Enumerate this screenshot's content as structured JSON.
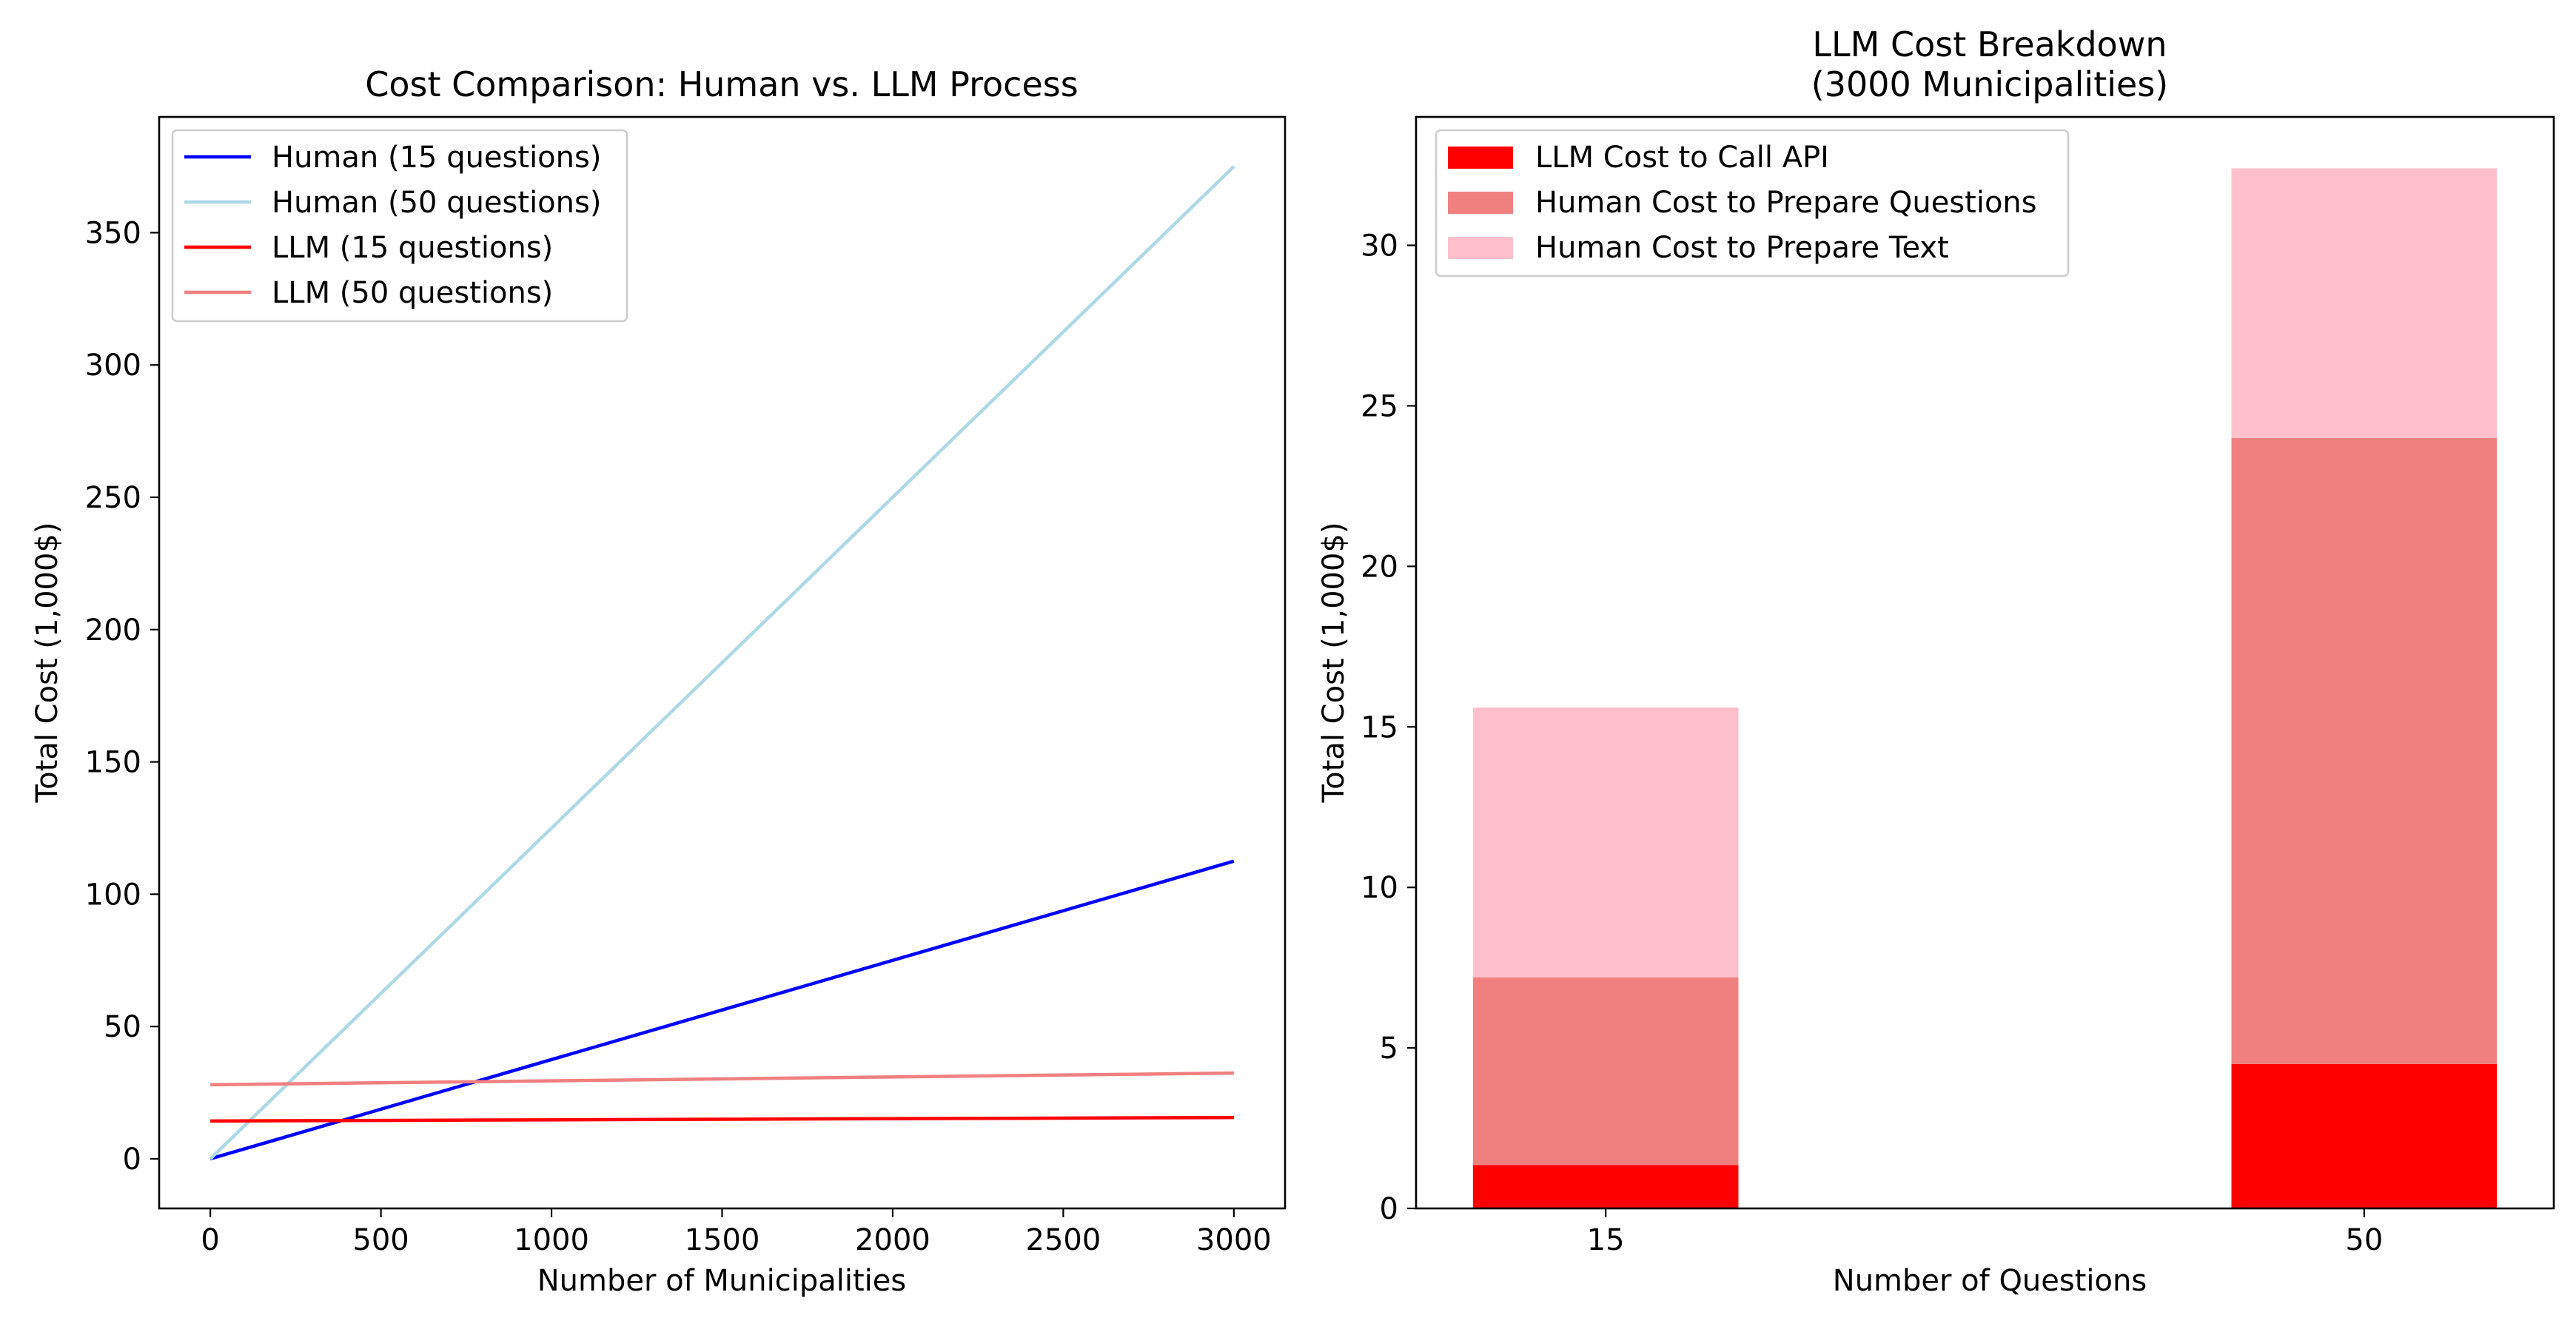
{
  "chart_data": [
    {
      "type": "line",
      "title": "Cost Comparison: Human vs. LLM Process",
      "xlabel": "Number of Municipalities",
      "ylabel": "Total Cost (1,000$)",
      "xlim": [
        -150,
        3150
      ],
      "ylim": [
        -18.75,
        393.75
      ],
      "xticks": [
        0,
        500,
        1000,
        1500,
        2000,
        2500,
        3000
      ],
      "yticks": [
        0,
        50,
        100,
        150,
        200,
        250,
        300,
        350
      ],
      "grid": false,
      "legend_position": "top-left",
      "series": [
        {
          "name": "Human (15 questions)",
          "color": "#0000ff",
          "x": [
            0,
            3000
          ],
          "y": [
            0,
            112.5
          ]
        },
        {
          "name": "Human (50 questions)",
          "color": "#add8e6",
          "x": [
            0,
            3000
          ],
          "y": [
            0,
            375
          ]
        },
        {
          "name": "LLM (15 questions)",
          "color": "#ff0000",
          "x": [
            0,
            3000
          ],
          "y": [
            14.3,
            15.6
          ]
        },
        {
          "name": "LLM (50 questions)",
          "color": "#f08080",
          "x": [
            0,
            3000
          ],
          "y": [
            28.0,
            32.4
          ]
        }
      ]
    },
    {
      "type": "bar",
      "stacked": true,
      "title": "LLM Cost Breakdown\n(3000 Municipalities)",
      "title_lines": [
        "LLM Cost Breakdown",
        "(3000 Municipalities)"
      ],
      "xlabel": "Number of Questions",
      "ylabel": "Total Cost (1,000$)",
      "categories": [
        "15",
        "50"
      ],
      "ylim": [
        0,
        34.0
      ],
      "yticks": [
        0,
        5,
        10,
        15,
        20,
        25,
        30
      ],
      "grid": false,
      "legend_position": "top-left",
      "series": [
        {
          "name": "LLM Cost to Call API",
          "color": "#ff0000",
          "values": [
            1.35,
            4.5
          ]
        },
        {
          "name": "Human Cost to Prepare Questions",
          "color": "#f08080",
          "values": [
            5.85,
            19.5
          ]
        },
        {
          "name": "Human Cost to Prepare Text",
          "color": "#ffc0cb",
          "values": [
            8.4,
            8.4
          ]
        }
      ]
    }
  ]
}
